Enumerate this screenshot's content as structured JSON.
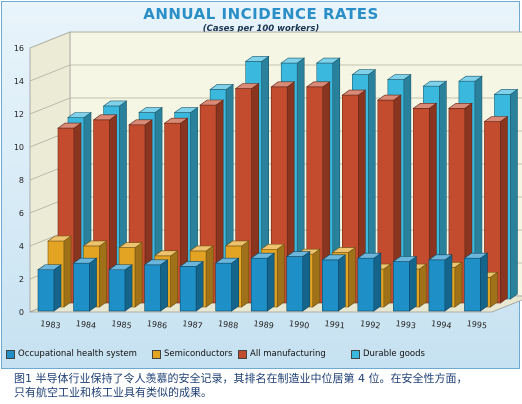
{
  "title": "ANNUAL INCIDENCE RATES",
  "subtitle": "(Cases per 100 workers)",
  "caption_line1": "图1  半导体行业保持了令人羡慕的安全记录，其排名在制造业中位居第 4 位。在安全性方面，",
  "caption_line2": "只有航空工业和核工业具有类似的成果。",
  "chart_data": {
    "type": "bar",
    "categories": [
      "1983",
      "1984",
      "1985",
      "1986",
      "1987",
      "1988",
      "1989",
      "1990",
      "1991",
      "1992",
      "1993",
      "1994",
      "1995"
    ],
    "ylim": [
      0,
      16
    ],
    "yticks": [
      "0",
      "2",
      "4",
      "6",
      "8",
      "10",
      "12",
      "14",
      "16"
    ],
    "grid": true,
    "legend_position": "bottom",
    "series": [
      {
        "name": "Occupational health system",
        "color": "#1e8fc7",
        "values": [
          2.5,
          2.9,
          2.5,
          2.8,
          2.7,
          2.9,
          3.2,
          3.3,
          3.1,
          3.2,
          3.0,
          3.1,
          3.2
        ]
      },
      {
        "name": "Semiconductors",
        "color": "#e3a323",
        "values": [
          4.0,
          3.7,
          3.6,
          3.1,
          3.4,
          3.7,
          3.5,
          3.2,
          3.3,
          2.3,
          2.3,
          2.4,
          1.8
        ]
      },
      {
        "name": "All manufacturing",
        "color": "#c44c2e",
        "values": [
          10.6,
          11.1,
          10.8,
          10.9,
          12.0,
          13.0,
          13.1,
          13.1,
          12.6,
          12.3,
          11.8,
          11.8,
          11.0
        ]
      },
      {
        "name": "Durable goods",
        "color": "#3bb8de",
        "values": [
          11.0,
          11.7,
          11.3,
          11.3,
          12.7,
          14.4,
          14.3,
          14.3,
          13.6,
          13.3,
          12.9,
          13.2,
          12.4
        ]
      }
    ]
  }
}
